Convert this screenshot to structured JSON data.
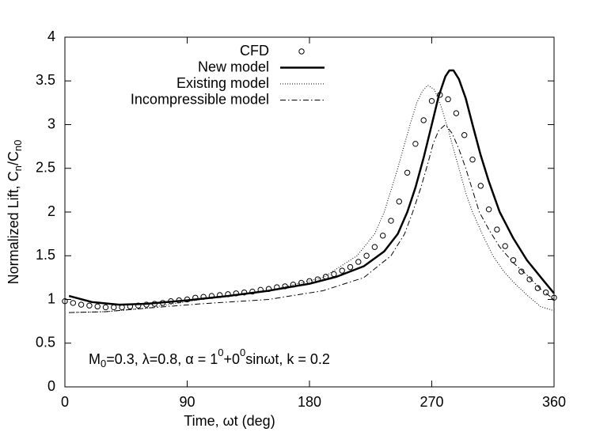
{
  "chart_data": {
    "type": "line",
    "ylabel": [
      {
        "text": "Normalized Lift, C"
      },
      {
        "text": "n",
        "shift": "sub"
      },
      {
        "text": "/C"
      },
      {
        "text": "n0",
        "shift": "sub"
      }
    ],
    "xlabel": "Time, ωt (deg)",
    "annotation": [
      {
        "text": "M"
      },
      {
        "text": "0",
        "shift": "sub"
      },
      {
        "text": "=0.3, λ=0.8, α = 1"
      },
      {
        "text": "0",
        "shift": "super"
      },
      {
        "text": "+0"
      },
      {
        "text": "0",
        "shift": "super"
      },
      {
        "text": "sinωt, k = 0.2"
      }
    ],
    "xlim": [
      0,
      360
    ],
    "xticks": [
      0,
      90,
      180,
      270,
      360
    ],
    "ylim": [
      0,
      4
    ],
    "yticks": [
      0,
      0.5,
      1,
      1.5,
      2,
      2.5,
      3,
      3.5,
      4
    ],
    "grid": false,
    "legend": "top-center",
    "series": [
      {
        "name": "CFD",
        "color": "#000000",
        "style": "markers",
        "x": [
          0,
          6,
          12,
          18,
          24,
          30,
          36,
          42,
          48,
          54,
          60,
          66,
          72,
          78,
          84,
          90,
          96,
          102,
          108,
          114,
          120,
          126,
          132,
          138,
          144,
          150,
          156,
          162,
          168,
          174,
          180,
          186,
          192,
          198,
          204,
          210,
          216,
          222,
          228,
          234,
          240,
          246,
          252,
          258,
          264,
          270,
          276,
          282,
          288,
          294,
          300,
          306,
          312,
          318,
          324,
          330,
          336,
          342,
          348,
          354,
          360
        ],
        "values": [
          0.98,
          0.96,
          0.94,
          0.93,
          0.92,
          0.91,
          0.91,
          0.91,
          0.92,
          0.93,
          0.94,
          0.95,
          0.96,
          0.98,
          0.99,
          1.0,
          1.02,
          1.03,
          1.04,
          1.05,
          1.06,
          1.07,
          1.08,
          1.09,
          1.11,
          1.12,
          1.14,
          1.15,
          1.17,
          1.19,
          1.21,
          1.23,
          1.26,
          1.29,
          1.33,
          1.37,
          1.43,
          1.5,
          1.6,
          1.73,
          1.9,
          2.12,
          2.45,
          2.78,
          3.05,
          3.27,
          3.34,
          3.29,
          3.13,
          2.88,
          2.6,
          2.3,
          2.03,
          1.8,
          1.61,
          1.45,
          1.32,
          1.23,
          1.13,
          1.08,
          1.02
        ]
      },
      {
        "name": "New model",
        "color": "#000000",
        "style": "solid",
        "x": [
          3,
          20,
          40,
          60,
          90,
          120,
          150,
          180,
          200,
          220,
          235,
          245,
          252,
          258,
          264,
          270,
          275,
          280,
          283,
          286,
          290,
          295,
          300,
          306,
          312,
          320,
          330,
          340,
          352,
          360
        ],
        "values": [
          1.04,
          0.97,
          0.94,
          0.95,
          0.99,
          1.04,
          1.1,
          1.18,
          1.26,
          1.38,
          1.55,
          1.75,
          2.0,
          2.28,
          2.62,
          3.0,
          3.32,
          3.55,
          3.62,
          3.62,
          3.52,
          3.3,
          3.0,
          2.65,
          2.35,
          2.0,
          1.7,
          1.45,
          1.22,
          1.07
        ]
      },
      {
        "name": "Existing model",
        "color": "#000000",
        "style": "dotted",
        "x": [
          3,
          30,
          60,
          100,
          150,
          190,
          215,
          228,
          235,
          240,
          245,
          250,
          255,
          259,
          263,
          267,
          272,
          277,
          282,
          286,
          290,
          295,
          300,
          308,
          315,
          323,
          330,
          340,
          350,
          360
        ],
        "values": [
          0.85,
          0.86,
          0.9,
          1.0,
          1.1,
          1.25,
          1.5,
          1.75,
          2.0,
          2.25,
          2.5,
          2.78,
          3.05,
          3.25,
          3.38,
          3.45,
          3.4,
          3.2,
          2.95,
          2.72,
          2.5,
          2.22,
          2.0,
          1.72,
          1.5,
          1.32,
          1.2,
          1.05,
          0.92,
          0.87
        ]
      },
      {
        "name": "Incompressible model",
        "color": "#000000",
        "style": "dashdot",
        "x": [
          3,
          30,
          60,
          100,
          150,
          190,
          220,
          240,
          250,
          256,
          262,
          267,
          271,
          275,
          280,
          285,
          290,
          295,
          300,
          305,
          312,
          320,
          330,
          340,
          350,
          360
        ],
        "values": [
          0.85,
          0.86,
          0.9,
          0.95,
          1.0,
          1.1,
          1.25,
          1.5,
          1.75,
          2.0,
          2.28,
          2.55,
          2.78,
          2.93,
          3.0,
          2.9,
          2.72,
          2.5,
          2.25,
          2.0,
          1.8,
          1.6,
          1.42,
          1.28,
          1.12,
          1.0
        ]
      }
    ]
  }
}
